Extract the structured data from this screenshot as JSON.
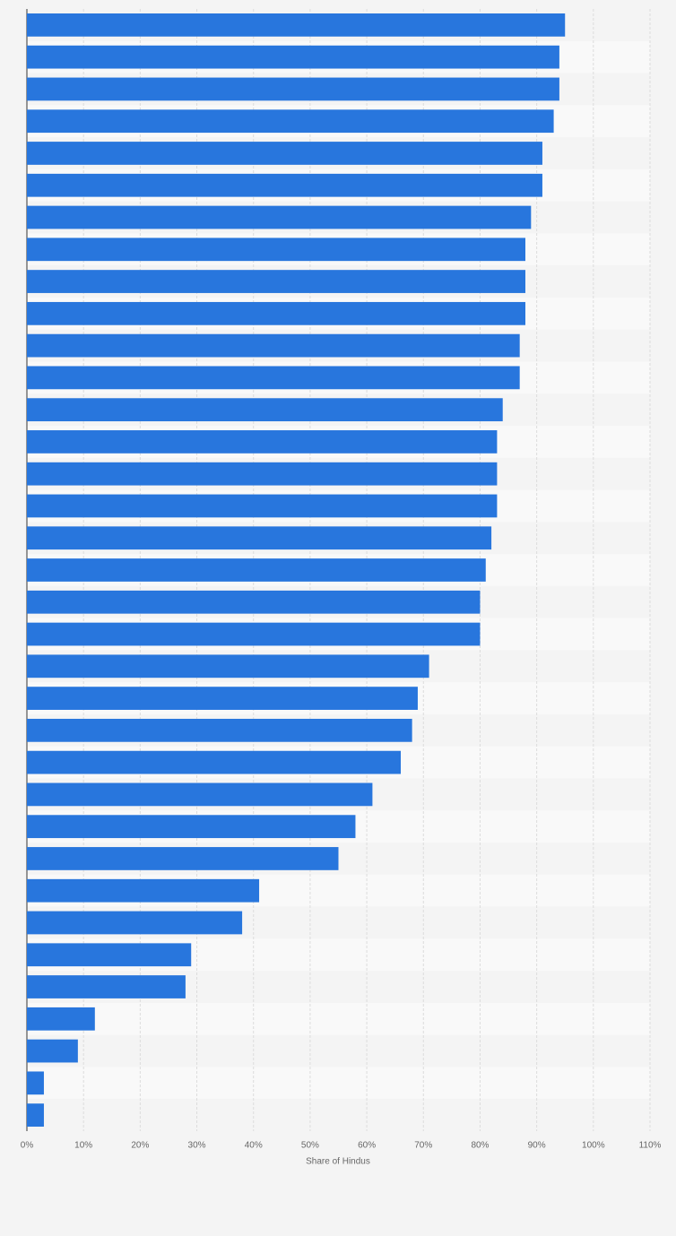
{
  "chart_data": {
    "type": "bar",
    "orientation": "horizontal",
    "xlabel": "Share of Hindus",
    "categories": [
      null,
      null,
      null,
      null,
      null,
      null,
      null,
      null,
      null,
      null,
      null,
      null,
      null,
      null,
      null,
      null,
      null,
      null,
      null,
      null,
      null,
      null,
      null,
      null,
      null,
      null,
      null,
      null,
      null,
      null,
      null,
      null,
      null,
      null,
      null
    ],
    "values": [
      95,
      94,
      94,
      93,
      91,
      91,
      89,
      88,
      88,
      88,
      87,
      87,
      84,
      83,
      83,
      83,
      82,
      81,
      80,
      80,
      71,
      69,
      68,
      66,
      61,
      58,
      55,
      41,
      38,
      29,
      28,
      12,
      9,
      3,
      3
    ],
    "color": "#2876dd",
    "xlim": [
      0,
      110
    ],
    "xticks": [
      {
        "value": 0,
        "label": "0%"
      },
      {
        "value": 10,
        "label": "10%"
      },
      {
        "value": 20,
        "label": "20%"
      },
      {
        "value": 30,
        "label": "30%"
      },
      {
        "value": 40,
        "label": "40%"
      },
      {
        "value": 50,
        "label": "50%"
      },
      {
        "value": 60,
        "label": "60%"
      },
      {
        "value": 70,
        "label": "70%"
      },
      {
        "value": 80,
        "label": "80%"
      },
      {
        "value": 90,
        "label": "90%"
      },
      {
        "value": 100,
        "label": "100%"
      },
      {
        "value": 110,
        "label": "110%"
      }
    ],
    "grid": true
  }
}
